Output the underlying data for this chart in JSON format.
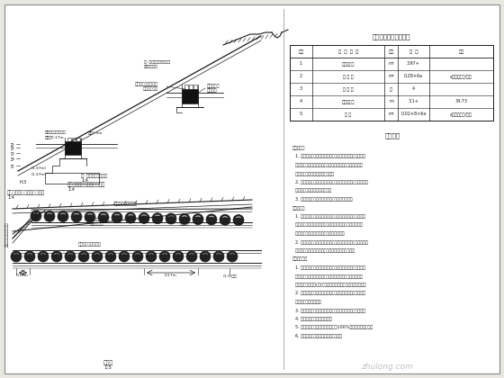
{
  "bg_color": "#e8e8e0",
  "paper_color": "#ffffff",
  "line_color": "#1a1a1a",
  "table_title": "水泥搅拌桩工程数量表",
  "table_headers": [
    "序号",
    "工  程  名  称",
    "单位",
    "单  桩",
    "备注"
  ],
  "table_rows": [
    [
      "1",
      "水泥搅拌桩",
      "m²",
      "3.97+",
      ""
    ],
    [
      "2",
      "水 泥 土",
      "m²",
      "0.28×6a",
      "a为有效深度/桩数"
    ],
    [
      "3",
      "石 灰 垫",
      "处",
      "4",
      ""
    ],
    [
      "4",
      "水泥砂浆桩",
      "m",
      "3.1+",
      "34.73"
    ],
    [
      "5",
      "砌 石",
      "m²",
      "0.02×8×6a",
      "a为有效深度/桩数"
    ]
  ],
  "notes_title": "设计说明",
  "watermark": "zhulong.com"
}
